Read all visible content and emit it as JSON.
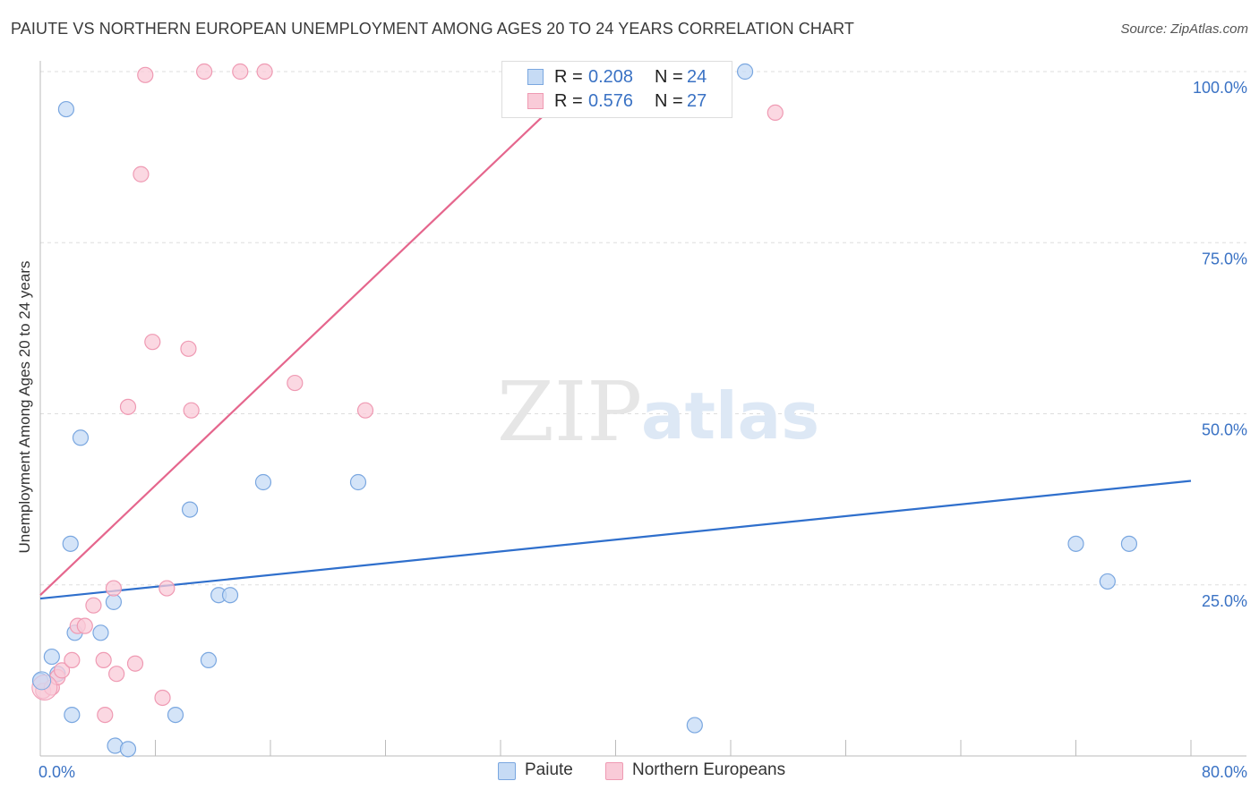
{
  "title": "PAIUTE VS NORTHERN EUROPEAN UNEMPLOYMENT AMONG AGES 20 TO 24 YEARS CORRELATION CHART",
  "source": "Source: ZipAtlas.com",
  "watermark": {
    "zip": "ZIP",
    "atlas": "atlas"
  },
  "colors": {
    "blue_fill": "#c6dbf5",
    "blue_stroke": "#7aa7e0",
    "blue_line": "#2f6fcc",
    "pink_fill": "#f9cbd8",
    "pink_stroke": "#ef9ab3",
    "pink_line": "#e5668d",
    "tick_text": "#3a72c4",
    "grid": "#dddddd"
  },
  "legend": {
    "rows": [
      {
        "r_label": "R =",
        "r_value": "0.208",
        "n_label": "N =",
        "n_value": "24",
        "series": "blue"
      },
      {
        "r_label": "R =",
        "r_value": "0.576",
        "n_label": "N =",
        "n_value": "27",
        "series": "pink"
      }
    ]
  },
  "bottom_legend": {
    "paiute": "Paiute",
    "northern": "Northern Europeans"
  },
  "chart_data": {
    "type": "scatter",
    "title": "PAIUTE VS NORTHERN EUROPEAN UNEMPLOYMENT AMONG AGES 20 TO 24 YEARS CORRELATION CHART",
    "xlabel": "",
    "ylabel": "Unemployment Among Ages 20 to 24 years",
    "xlim": [
      0,
      80
    ],
    "ylim": [
      0,
      100
    ],
    "x_tick_labels": [
      "0.0%",
      "80.0%"
    ],
    "y_ticks": [
      25,
      50,
      75,
      100
    ],
    "y_tick_labels": [
      "25.0%",
      "50.0%",
      "75.0%",
      "100.0%"
    ],
    "series": [
      {
        "name": "Paiute",
        "color": "blue",
        "r": 0.208,
        "n": 24,
        "points": [
          [
            0.0,
            11.0
          ],
          [
            0.8,
            14.5
          ],
          [
            1.2,
            12.0
          ],
          [
            1.8,
            94.5
          ],
          [
            2.1,
            31.0
          ],
          [
            2.2,
            6.0
          ],
          [
            2.4,
            18.0
          ],
          [
            2.8,
            46.5
          ],
          [
            4.2,
            18.0
          ],
          [
            5.1,
            22.5
          ],
          [
            5.2,
            1.5
          ],
          [
            6.1,
            1.0
          ],
          [
            9.4,
            6.0
          ],
          [
            10.4,
            36.0
          ],
          [
            11.7,
            14.0
          ],
          [
            12.4,
            23.5
          ],
          [
            13.2,
            23.5
          ],
          [
            15.5,
            40.0
          ],
          [
            22.1,
            40.0
          ],
          [
            45.5,
            4.5
          ],
          [
            49.0,
            100.0
          ],
          [
            72.0,
            31.0
          ],
          [
            74.2,
            25.5
          ],
          [
            75.7,
            31.0
          ]
        ],
        "trend": {
          "x": [
            0,
            80
          ],
          "y": [
            23.0,
            40.2
          ]
        }
      },
      {
        "name": "Northern Europeans",
        "color": "pink",
        "r": 0.576,
        "n": 27,
        "points": [
          [
            0.2,
            9.5
          ],
          [
            0.8,
            10.0
          ],
          [
            1.2,
            11.5
          ],
          [
            1.5,
            12.5
          ],
          [
            2.2,
            14.0
          ],
          [
            2.6,
            19.0
          ],
          [
            3.1,
            19.0
          ],
          [
            3.7,
            22.0
          ],
          [
            4.4,
            14.0
          ],
          [
            4.5,
            6.0
          ],
          [
            5.1,
            24.5
          ],
          [
            5.3,
            12.0
          ],
          [
            6.1,
            51.0
          ],
          [
            6.6,
            13.5
          ],
          [
            7.0,
            85.0
          ],
          [
            7.3,
            99.5
          ],
          [
            7.8,
            60.5
          ],
          [
            8.5,
            8.5
          ],
          [
            8.8,
            24.5
          ],
          [
            10.3,
            59.5
          ],
          [
            10.5,
            50.5
          ],
          [
            11.4,
            100.0
          ],
          [
            13.9,
            100.0
          ],
          [
            15.6,
            100.0
          ],
          [
            17.7,
            54.5
          ],
          [
            22.6,
            50.5
          ],
          [
            51.1,
            94.0
          ]
        ],
        "trend": {
          "x": [
            0,
            38.2
          ],
          "y": [
            23.5,
            100.0
          ]
        }
      }
    ]
  }
}
